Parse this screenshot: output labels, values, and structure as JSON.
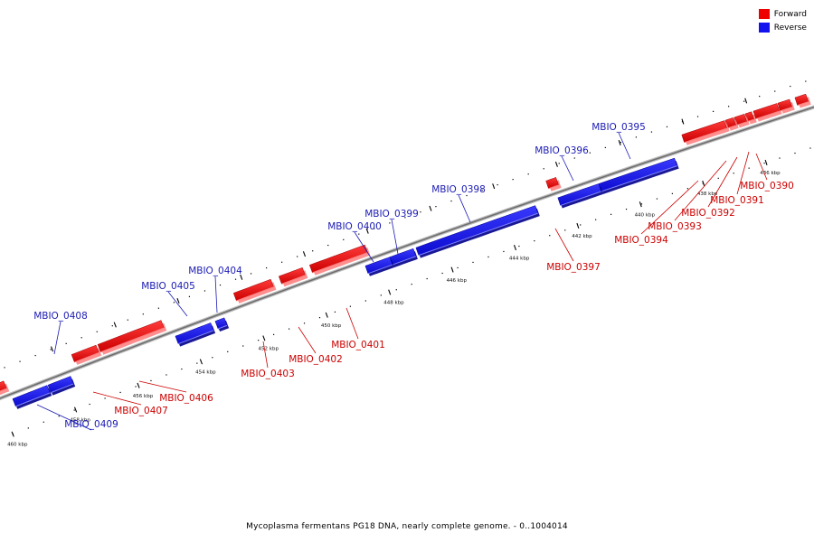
{
  "legend": {
    "items": [
      {
        "label": "Forward",
        "color": "#ee0000"
      },
      {
        "label": "Reverse",
        "color": "#1212ee"
      }
    ]
  },
  "caption": "Mycoplasma fermentans PG18 DNA, nearly complete genome. - 0..1004014",
  "colors": {
    "forward": "#ee0000",
    "forward_dark": "#9a0000",
    "forward_light": "#ff7a7a",
    "reverse": "#1212ee",
    "reverse_dark": "#00008a",
    "reverse_light": "#6f6fff",
    "backbone": "#8c8c8c",
    "forward_label": "#cc0000",
    "reverse_label": "#1a1ab4"
  },
  "ticks": [
    {
      "label": "436 kbp",
      "kbp": 436
    },
    {
      "label": "438 kbp",
      "kbp": 438
    },
    {
      "label": "440 kbp",
      "kbp": 440
    },
    {
      "label": "442 kbp",
      "kbp": 442
    },
    {
      "label": "444 kbp",
      "kbp": 444
    },
    {
      "label": "446 kbp",
      "kbp": 446
    },
    {
      "label": "448 kbp",
      "kbp": 448
    },
    {
      "label": "450 kbp",
      "kbp": 450
    },
    {
      "label": "452 kbp",
      "kbp": 452
    },
    {
      "label": "454 kbp",
      "kbp": 454
    },
    {
      "label": "456 kbp",
      "kbp": 456
    },
    {
      "label": "458 kbp",
      "kbp": 458
    },
    {
      "label": "460 kbp",
      "kbp": 460
    }
  ],
  "genes": [
    {
      "name": "MBIO_0390",
      "strand": "forward",
      "labeled": true
    },
    {
      "name": "MBIO_0391",
      "strand": "forward",
      "labeled": true
    },
    {
      "name": "MBIO_0392",
      "strand": "forward",
      "labeled": true
    },
    {
      "name": "MBIO_0393",
      "strand": "forward",
      "labeled": true
    },
    {
      "name": "MBIO_0394",
      "strand": "forward",
      "labeled": true
    },
    {
      "name": "MBIO_0395",
      "strand": "reverse",
      "labeled": true
    },
    {
      "name": "MBIO_0396",
      "strand": "reverse",
      "labeled": true
    },
    {
      "name": "MBIO_0397",
      "strand": "forward",
      "labeled": true
    },
    {
      "name": "MBIO_0398",
      "strand": "reverse",
      "labeled": true
    },
    {
      "name": "MBIO_0399",
      "strand": "reverse",
      "labeled": true
    },
    {
      "name": "MBIO_0400",
      "strand": "reverse",
      "labeled": true
    },
    {
      "name": "MBIO_0401",
      "strand": "forward",
      "labeled": true
    },
    {
      "name": "MBIO_0402",
      "strand": "forward",
      "labeled": true
    },
    {
      "name": "MBIO_0403",
      "strand": "forward",
      "labeled": true
    },
    {
      "name": "MBIO_0404",
      "strand": "reverse",
      "labeled": true
    },
    {
      "name": "MBIO_0405",
      "strand": "reverse",
      "labeled": true
    },
    {
      "name": "MBIO_0406",
      "strand": "forward",
      "labeled": true
    },
    {
      "name": "MBIO_0407",
      "strand": "forward",
      "labeled": true
    },
    {
      "name": "MBIO_0408",
      "strand": "reverse",
      "labeled": true
    },
    {
      "name": "MBIO_0409",
      "strand": "reverse",
      "labeled": true
    },
    {
      "name": "",
      "strand": "forward",
      "labeled": false
    },
    {
      "name": "",
      "strand": "forward",
      "labeled": false
    },
    {
      "name": "",
      "strand": "forward",
      "labeled": false
    },
    {
      "name": "",
      "strand": "reverse",
      "labeled": false
    }
  ]
}
